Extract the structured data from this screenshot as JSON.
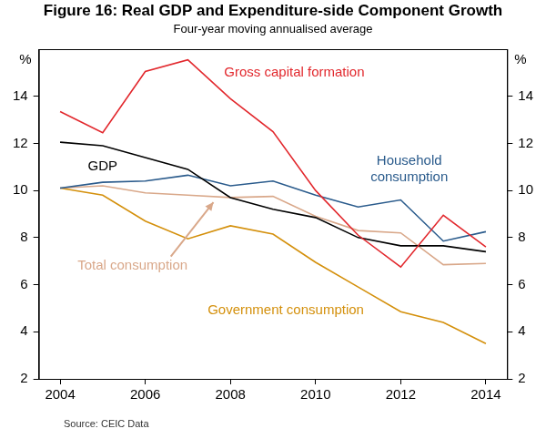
{
  "chart_data": {
    "type": "line",
    "title": "Figure 16: Real GDP and Expenditure-side Component Growth",
    "subtitle": "Four-year moving annualised average",
    "ylabel": "%",
    "source": "Source: CEIC Data",
    "x": [
      2004,
      2005,
      2006,
      2007,
      2008,
      2009,
      2010,
      2011,
      2012,
      2013,
      2014
    ],
    "xlim": [
      2003.5,
      2014.5
    ],
    "xticks": [
      2004,
      2006,
      2008,
      2010,
      2012,
      2014
    ],
    "ylim": [
      2,
      16
    ],
    "yticks": [
      2,
      4,
      6,
      8,
      10,
      12,
      14
    ],
    "grid": false,
    "legend": "none",
    "series": [
      {
        "name": "Gross capital formation",
        "color": "#e2282d",
        "values": [
          13.35,
          12.45,
          15.05,
          15.55,
          13.9,
          12.5,
          10.0,
          8.1,
          6.75,
          8.95,
          7.6
        ]
      },
      {
        "name": "GDP",
        "color": "#000000",
        "values": [
          12.05,
          11.9,
          11.4,
          10.9,
          9.7,
          9.2,
          8.85,
          8.0,
          7.65,
          7.65,
          7.4
        ]
      },
      {
        "name": "Household consumption",
        "color": "#2a5b8c",
        "values": [
          10.1,
          10.35,
          10.4,
          10.65,
          10.2,
          10.4,
          9.8,
          9.3,
          9.6,
          7.85,
          8.25
        ]
      },
      {
        "name": "Total consumption",
        "color": "#d9a88a",
        "values": [
          10.1,
          10.2,
          9.9,
          9.8,
          9.7,
          9.75,
          8.9,
          8.3,
          8.2,
          6.85,
          6.9
        ]
      },
      {
        "name": "Government consumption",
        "color": "#d4900c",
        "values": [
          10.1,
          9.8,
          8.7,
          7.95,
          8.5,
          8.15,
          6.95,
          5.9,
          4.85,
          4.4,
          3.5
        ]
      }
    ]
  }
}
